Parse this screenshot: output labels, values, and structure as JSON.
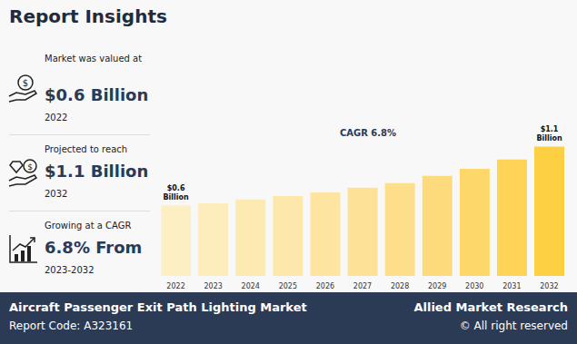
{
  "header": {
    "title": "Report Insights"
  },
  "stats": [
    {
      "label": "Market was valued at",
      "value": "$0.6 Billion",
      "note": "2022"
    },
    {
      "label": "Projected to reach",
      "value": "$1.1 Billion",
      "note": "2032"
    },
    {
      "label": "Growing at a CAGR",
      "value": "6.8% From",
      "note": "2023-2032"
    }
  ],
  "chart_data": {
    "type": "bar",
    "subtitle": "CAGR 6.8%",
    "categories": [
      "2022",
      "2023",
      "2024",
      "2025",
      "2026",
      "2027",
      "2028",
      "2029",
      "2030",
      "2031",
      "2032"
    ],
    "values": [
      0.6,
      0.62,
      0.65,
      0.68,
      0.71,
      0.75,
      0.79,
      0.85,
      0.91,
      0.99,
      1.1
    ],
    "value_labels": [
      "$0.6 Billion",
      null,
      null,
      null,
      null,
      null,
      null,
      null,
      null,
      null,
      "$1.1 Billion"
    ],
    "colors": [
      "#fdefc4",
      "#fdedbc",
      "#fdeab3",
      "#fde7aa",
      "#fde4a0",
      "#fde196",
      "#fdde8b",
      "#fdda7b",
      "#fdd76a",
      "#fdd458",
      "#fdcf42"
    ],
    "ylim": [
      0,
      1.15
    ],
    "data_labels": true,
    "tick_labels": "x",
    "grid": false
  },
  "footer": {
    "market": "Aircraft Passenger Exit Path Lighting Market",
    "code": "Report Code: A323161",
    "brand": "Allied Market Research",
    "rights": "© All right reserved"
  }
}
